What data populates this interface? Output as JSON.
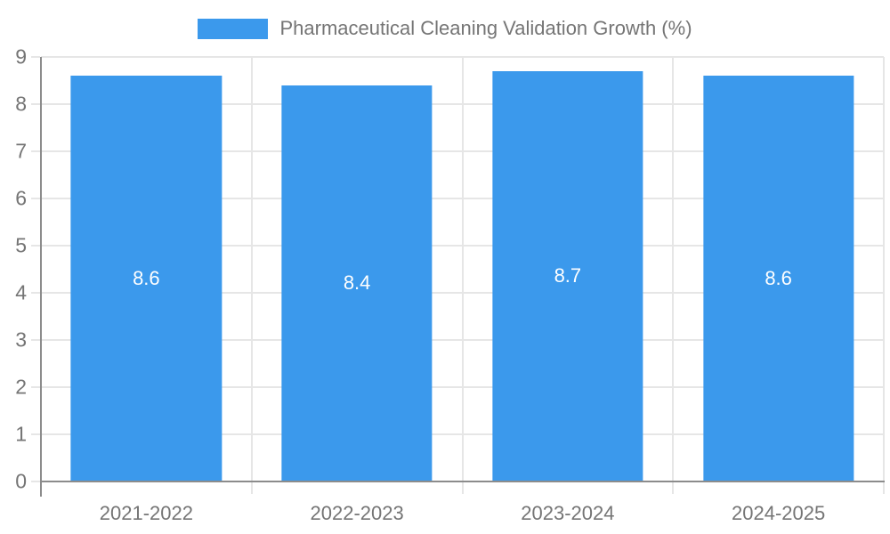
{
  "chart_data": {
    "type": "bar",
    "title": "Pharmaceutical Cleaning Validation Growth (%)",
    "categories": [
      "2021-2022",
      "2022-2023",
      "2023-2024",
      "2024-2025"
    ],
    "values": [
      8.6,
      8.4,
      8.7,
      8.6
    ],
    "value_labels": [
      "8.6",
      "8.4",
      "8.7",
      "8.6"
    ],
    "ylim": [
      0,
      9
    ],
    "yticks": [
      0,
      1,
      2,
      3,
      4,
      5,
      6,
      7,
      8,
      9
    ],
    "grid": "on",
    "legend_position": "top",
    "xlabel": "",
    "ylabel": "",
    "colors": {
      "bar": "#3b99ec",
      "bar_label": "#ffffff",
      "axis_line": "#8c8c8c",
      "gridline": "#e6e6e6",
      "tick_label": "#757575",
      "legend_text": "#757575",
      "background": "#ffffff"
    }
  }
}
